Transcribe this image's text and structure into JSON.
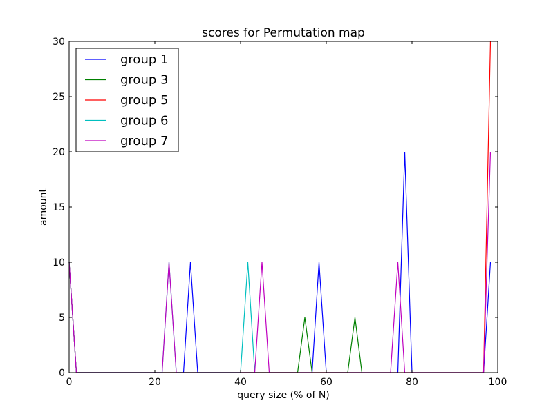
{
  "chart_data": {
    "type": "line",
    "title": "scores for Permutation map",
    "xlabel": "query size (% of N)",
    "ylabel": "amount",
    "xlim": [
      0,
      100
    ],
    "ylim": [
      0,
      30
    ],
    "xticks": [
      0,
      20,
      40,
      60,
      80,
      100
    ],
    "yticks": [
      0,
      5,
      10,
      15,
      20,
      25,
      30
    ],
    "legend_position": "top-left",
    "grid": false,
    "series": [
      {
        "name": "group 1",
        "color": "#0000ff",
        "x": [
          0,
          1.7,
          26.7,
          28.3,
          30.0,
          56.7,
          58.3,
          60.0,
          76.7,
          78.3,
          80.0,
          96.7,
          98.3
        ],
        "y": [
          10,
          0,
          0,
          10,
          0,
          0,
          10,
          0,
          0,
          20,
          0,
          0,
          10
        ]
      },
      {
        "name": "group 3",
        "color": "#008000",
        "x": [
          0,
          1.7,
          53.3,
          55.0,
          56.7,
          65.0,
          66.7,
          68.3
        ],
        "y": [
          10,
          0,
          0,
          5,
          0,
          0,
          5,
          0
        ]
      },
      {
        "name": "group 5",
        "color": "#ff0000",
        "x": [
          0,
          1.7,
          96.7,
          98.3
        ],
        "y": [
          10,
          0,
          0,
          30
        ]
      },
      {
        "name": "group 6",
        "color": "#00bfbf",
        "x": [
          0,
          1.7,
          21.7,
          23.3,
          25.0,
          40.0,
          41.7,
          43.3
        ],
        "y": [
          10,
          0,
          0,
          10,
          0,
          0,
          10,
          0
        ]
      },
      {
        "name": "group 7",
        "color": "#bf00bf",
        "x": [
          0,
          1.7,
          21.7,
          23.3,
          25.0,
          43.3,
          45.0,
          46.7,
          75.0,
          76.7,
          78.3,
          96.7,
          98.3
        ],
        "y": [
          10,
          0,
          0,
          10,
          0,
          0,
          10,
          0,
          0,
          10,
          0,
          0,
          20
        ]
      }
    ]
  }
}
